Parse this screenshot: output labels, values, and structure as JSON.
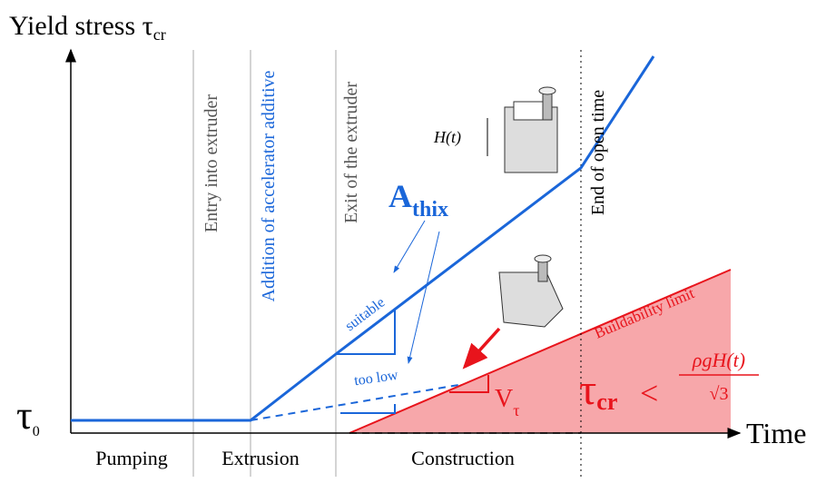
{
  "axes": {
    "y_label": "Yield stress τ",
    "y_label_sub": "cr",
    "y0_label": "τ",
    "y0_sub": "0",
    "x_label": "Time"
  },
  "phases": [
    "Pumping",
    "Extrusion",
    "Construction"
  ],
  "events": [
    "Entry into extruder",
    "Addition of accelerator additive",
    "Exit of the extruder",
    "End of open time"
  ],
  "annotations": {
    "a_thix": "A",
    "a_thix_sub": "thix",
    "suitable": "suitable",
    "too_low": "too low",
    "height": "H(t)",
    "buildability": "Buildability limit",
    "v_tau": "V",
    "v_tau_sub": "τ",
    "formula_lhs": "τ",
    "formula_lhs_sub": "cr",
    "formula_op": "<",
    "formula_num": "ρgH(t)",
    "formula_den": "√3"
  }
}
